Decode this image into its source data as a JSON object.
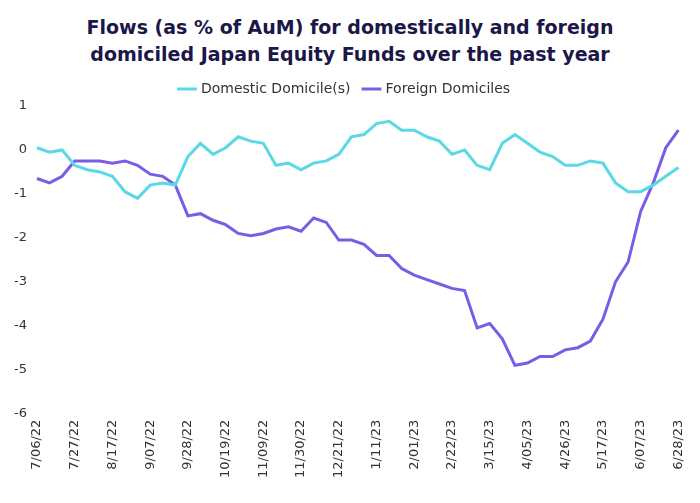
{
  "chart_data": {
    "type": "line",
    "title": "Flows (as % of AuM) for domestically and foreign domiciled Japan Equity Funds over the past year",
    "categories": [
      "7/06/22",
      null,
      null,
      "7/27/22",
      null,
      null,
      "8/17/22",
      null,
      null,
      "9/07/22",
      null,
      null,
      "9/28/22",
      null,
      null,
      "10/19/22",
      null,
      null,
      "11/09/22",
      null,
      null,
      "11/30/22",
      null,
      null,
      "12/21/22",
      null,
      null,
      "1/11/23",
      null,
      null,
      "2/01/23",
      null,
      null,
      "2/22/23",
      null,
      null,
      "3/15/23",
      null,
      null,
      "4/05/23",
      null,
      null,
      "4/26/23",
      null,
      null,
      "5/17/23",
      null,
      null,
      "6/07/23",
      null,
      null,
      "6/28/23"
    ],
    "series": [
      {
        "name": "Domestic Domicile(s)",
        "color": "#5ad8e6",
        "line_style": "solid",
        "values": [
          0.05,
          -0.05,
          0.0,
          -0.35,
          -0.45,
          -0.5,
          -0.6,
          -0.95,
          -1.1,
          -0.8,
          -0.75,
          -0.8,
          -0.15,
          0.15,
          -0.1,
          0.05,
          0.3,
          0.2,
          0.15,
          -0.35,
          -0.3,
          -0.45,
          -0.3,
          -0.25,
          -0.1,
          0.3,
          0.35,
          0.6,
          0.65,
          0.45,
          0.45,
          0.3,
          0.2,
          -0.1,
          0.0,
          -0.35,
          -0.45,
          0.15,
          0.35,
          0.15,
          -0.05,
          -0.15,
          -0.35,
          -0.35,
          -0.25,
          -0.3,
          -0.75,
          -0.95,
          -0.95,
          -0.8,
          -0.6,
          -0.4
        ]
      },
      {
        "name": "Foreign Domiciles",
        "color": "#7b5ce6",
        "line_style": "solid",
        "values": [
          -0.65,
          -0.75,
          -0.6,
          -0.25,
          -0.25,
          -0.25,
          -0.3,
          -0.25,
          -0.35,
          -0.55,
          -0.6,
          -0.8,
          -1.5,
          -1.45,
          -1.6,
          -1.7,
          -1.9,
          -1.95,
          -1.9,
          -1.8,
          -1.75,
          -1.85,
          -1.55,
          -1.65,
          -2.05,
          -2.05,
          -2.15,
          -2.4,
          -2.4,
          -2.7,
          -2.85,
          -2.95,
          -3.05,
          -3.15,
          -3.2,
          -4.05,
          -3.95,
          -4.3,
          -4.9,
          -4.85,
          -4.7,
          -4.7,
          -4.55,
          -4.5,
          -4.35,
          -3.85,
          -3.0,
          -2.55,
          -1.4,
          -0.75,
          0.05,
          0.45
        ]
      }
    ],
    "ylim": [
      -6,
      1
    ],
    "yticks": [
      -6,
      -5,
      -4,
      -3,
      -2,
      -1,
      0,
      1
    ],
    "grid": false,
    "legend": "top"
  }
}
